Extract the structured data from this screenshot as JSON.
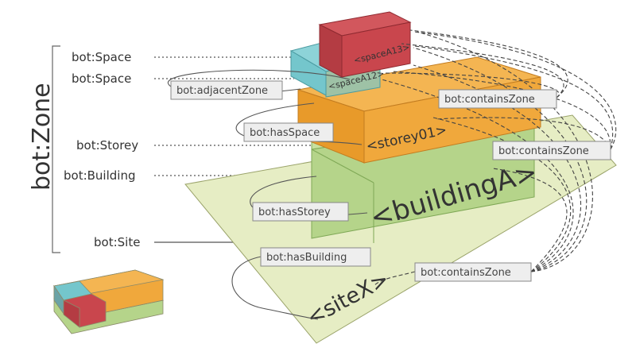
{
  "zone_group_label": "bot:Zone",
  "class_labels": {
    "space1": "bot:Space",
    "space2": "bot:Space",
    "storey": "bot:Storey",
    "building": "bot:Building",
    "site": "bot:Site"
  },
  "instances": {
    "space_a13": "<spaceA13>",
    "space_a12": "<spaceA12>",
    "storey": "<storey01>",
    "building": "<buildingA>",
    "site": "<siteX>"
  },
  "relations": {
    "adjacent_zone": "bot:adjacentZone",
    "has_space": "bot:hasSpace",
    "has_storey": "bot:hasStorey",
    "has_building": "bot:hasBuilding",
    "contains_zone_1": "bot:containsZone",
    "contains_zone_2": "bot:containsZone",
    "contains_zone_3": "bot:containsZone"
  },
  "colors": {
    "site": "#e6edc4",
    "building": "#b5d48a",
    "storey": "#f0a83c",
    "space_red": "#c9464d",
    "space_cyan": "#74c6cc",
    "label_box": "#eeeeee"
  }
}
